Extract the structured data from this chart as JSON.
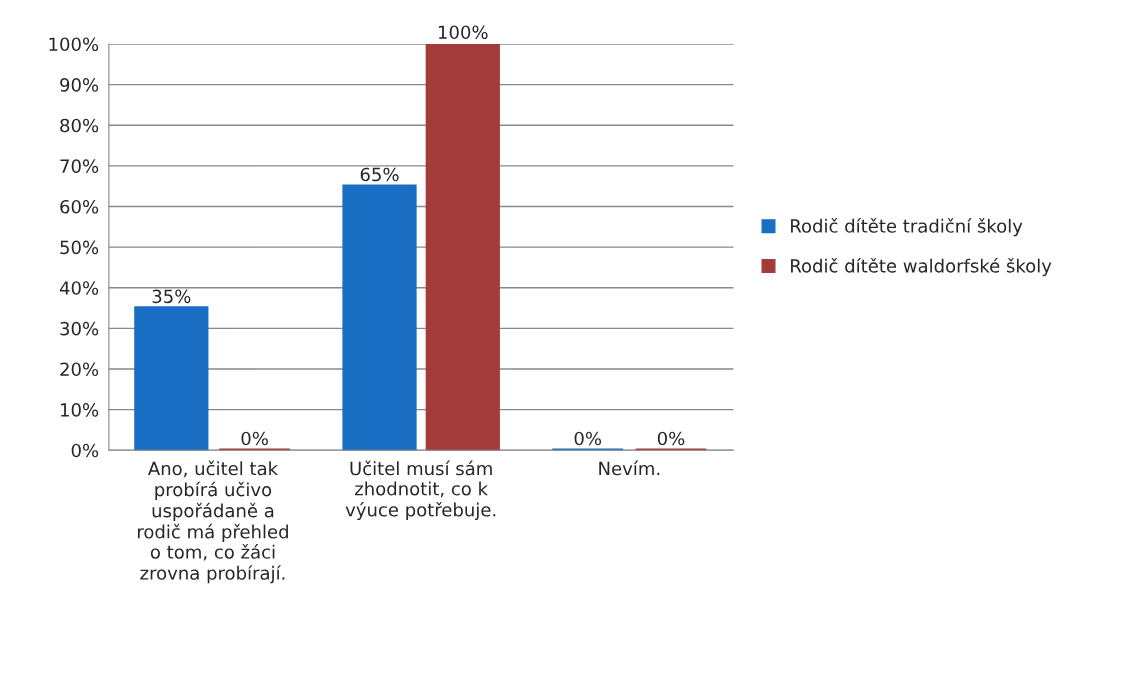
{
  "chart_data": {
    "type": "bar",
    "categories": [
      "Ano, učitel tak\nprobírá učivo\nuspořádaně a\nrodič má přehled\no tom, co žáci\nzrovna probírají.",
      "Učitel musí sám\nzhodnotit, co k\nvýuce potřebuje.",
      "Nevím."
    ],
    "series": [
      {
        "name": "Rodič dítěte tradiční školy",
        "color": "#1a6fc4",
        "values": [
          35,
          65,
          0
        ],
        "value_labels": [
          "35%",
          "65%",
          "0%"
        ]
      },
      {
        "name": "Rodič dítěte waldorfské školy",
        "color": "#a33b3b",
        "values": [
          0,
          100,
          0
        ],
        "value_labels": [
          "0%",
          "100%",
          "0%"
        ]
      }
    ],
    "ylim": [
      0,
      100
    ],
    "yticks": [
      {
        "value": 0,
        "label": "0%"
      },
      {
        "value": 10,
        "label": "10%"
      },
      {
        "value": 20,
        "label": "20%"
      },
      {
        "value": 30,
        "label": "30%"
      },
      {
        "value": 40,
        "label": "40%"
      },
      {
        "value": 50,
        "label": "50%"
      },
      {
        "value": 60,
        "label": "60%"
      },
      {
        "value": 70,
        "label": "70%"
      },
      {
        "value": 80,
        "label": "80%"
      },
      {
        "value": 90,
        "label": "90%"
      },
      {
        "value": 100,
        "label": "100%"
      }
    ],
    "grid": "y",
    "legend": "right"
  }
}
